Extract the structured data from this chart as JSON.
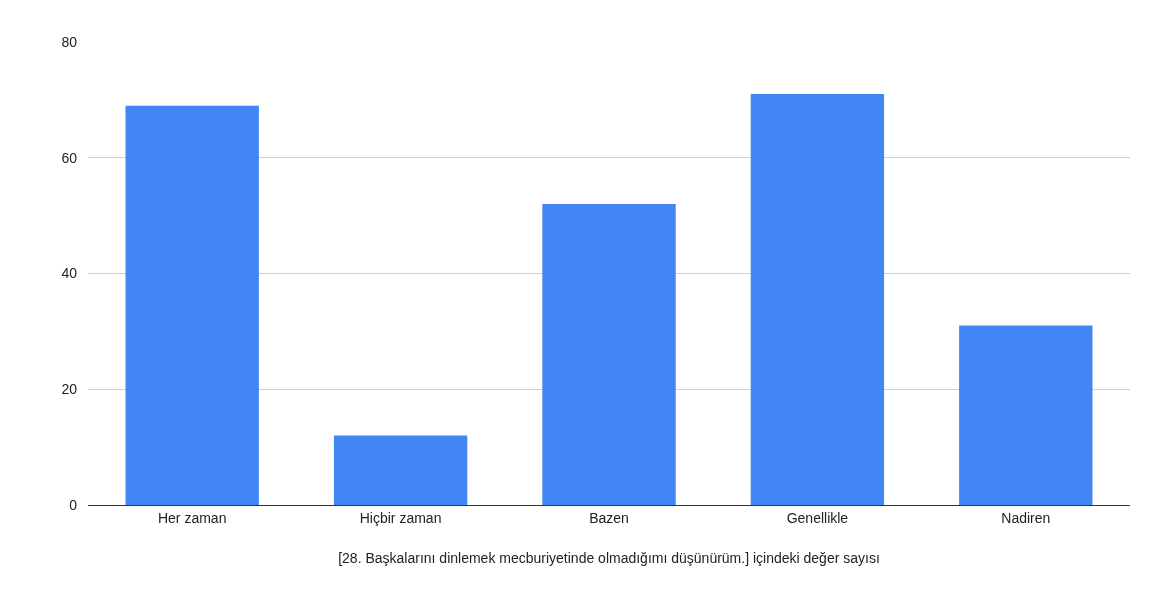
{
  "chart_data": {
    "type": "bar",
    "xlabel": "[28. Başkalarını dinlemek mecburiyetinde olmadığımı düşünürüm.] içindeki değer sayısı",
    "categories": [
      "Her zaman",
      "Hiçbir zaman",
      "Bazen",
      "Genellikle",
      "Nadiren"
    ],
    "values": [
      69,
      12,
      52,
      71,
      31
    ],
    "color": "#4285f4",
    "ylim": [
      0,
      80
    ],
    "yticks": [
      0,
      20,
      40,
      60,
      80
    ],
    "grid": "y"
  }
}
